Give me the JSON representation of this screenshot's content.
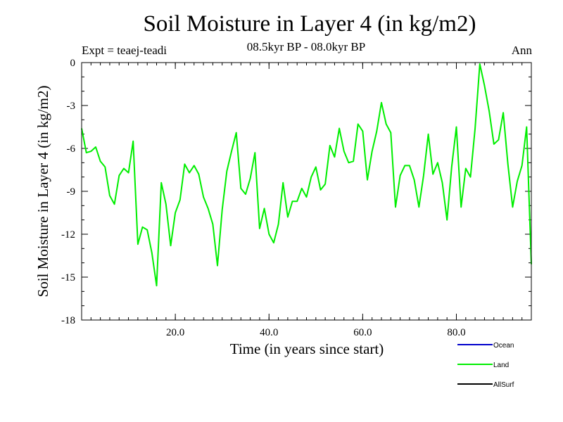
{
  "header": {
    "title": "Soil Moisture in Layer 4 (in kg/m2)",
    "subtitle": "08.5kyr BP - 08.0kyr BP",
    "expt": "Expt = teaej-teadi",
    "period": "Ann"
  },
  "chart_data": {
    "type": "line",
    "title": "Soil Moisture in Layer 4 (in kg/m2)",
    "xlabel": "Time (in years since start)",
    "ylabel": "Soil Moisture in Layer 4 (in kg/m2)",
    "xlim": [
      0,
      96
    ],
    "ylim": [
      -18,
      0
    ],
    "xticks": [
      20,
      40,
      60,
      80
    ],
    "xtick_labels": [
      "20.0",
      "40.0",
      "60.0",
      "80.0"
    ],
    "yticks": [
      0,
      -3,
      -6,
      -9,
      -12,
      -15,
      -18
    ],
    "ytick_labels": [
      "0",
      "-3",
      "-6",
      "-9",
      "-12",
      "-15",
      "-18"
    ],
    "x_minor_step": 2,
    "y_minor_step": 1,
    "legend": [
      {
        "name": "Ocean",
        "color": "#0000cc"
      },
      {
        "name": "Land",
        "color": "#00ee00"
      },
      {
        "name": "AllSurf",
        "color": "#000000"
      }
    ],
    "series": [
      {
        "name": "Land",
        "color": "#00ee00",
        "x": [
          0,
          1,
          2,
          3,
          4,
          5,
          6,
          7,
          8,
          9,
          10,
          11,
          12,
          13,
          14,
          15,
          16,
          17,
          18,
          19,
          20,
          21,
          22,
          23,
          24,
          25,
          26,
          27,
          28,
          29,
          30,
          31,
          32,
          33,
          34,
          35,
          36,
          37,
          38,
          39,
          40,
          41,
          42,
          43,
          44,
          45,
          46,
          47,
          48,
          49,
          50,
          51,
          52,
          53,
          54,
          55,
          56,
          57,
          58,
          59,
          60,
          61,
          62,
          63,
          64,
          65,
          66,
          67,
          68,
          69,
          70,
          71,
          72,
          73,
          74,
          75,
          76,
          77,
          78,
          79,
          80,
          81,
          82,
          83,
          84,
          85,
          86,
          87,
          88,
          89,
          90,
          91,
          92,
          93,
          94,
          95,
          96
        ],
        "values": [
          -4.6,
          -6.3,
          -6.2,
          -5.9,
          -6.9,
          -7.3,
          -9.3,
          -9.9,
          -7.9,
          -7.4,
          -7.7,
          -5.5,
          -12.7,
          -11.5,
          -11.7,
          -13.3,
          -15.6,
          -8.4,
          -9.9,
          -12.8,
          -10.5,
          -9.6,
          -7.1,
          -7.7,
          -7.2,
          -7.8,
          -9.4,
          -10.2,
          -11.3,
          -14.2,
          -10.3,
          -7.6,
          -6.2,
          -4.9,
          -8.8,
          -9.2,
          -8.1,
          -6.3,
          -11.6,
          -10.2,
          -12.0,
          -12.6,
          -11.3,
          -8.4,
          -10.8,
          -9.7,
          -9.7,
          -8.8,
          -9.4,
          -8.0,
          -7.3,
          -8.9,
          -8.5,
          -5.8,
          -6.6,
          -4.6,
          -6.2,
          -7.0,
          -6.9,
          -4.3,
          -4.8,
          -8.2,
          -6.2,
          -4.8,
          -2.8,
          -4.3,
          -4.9,
          -10.1,
          -7.9,
          -7.2,
          -7.2,
          -8.2,
          -10.1,
          -7.9,
          -5.0,
          -7.8,
          -7.0,
          -8.4,
          -11.0,
          -7.3,
          -4.5,
          -10.1,
          -7.4,
          -8.0,
          -4.6,
          -0.1,
          -1.6,
          -3.4,
          -5.7,
          -5.4,
          -3.5,
          -7.1,
          -10.1,
          -8.3,
          -7.2,
          -4.5,
          -14.1
        ]
      }
    ]
  }
}
